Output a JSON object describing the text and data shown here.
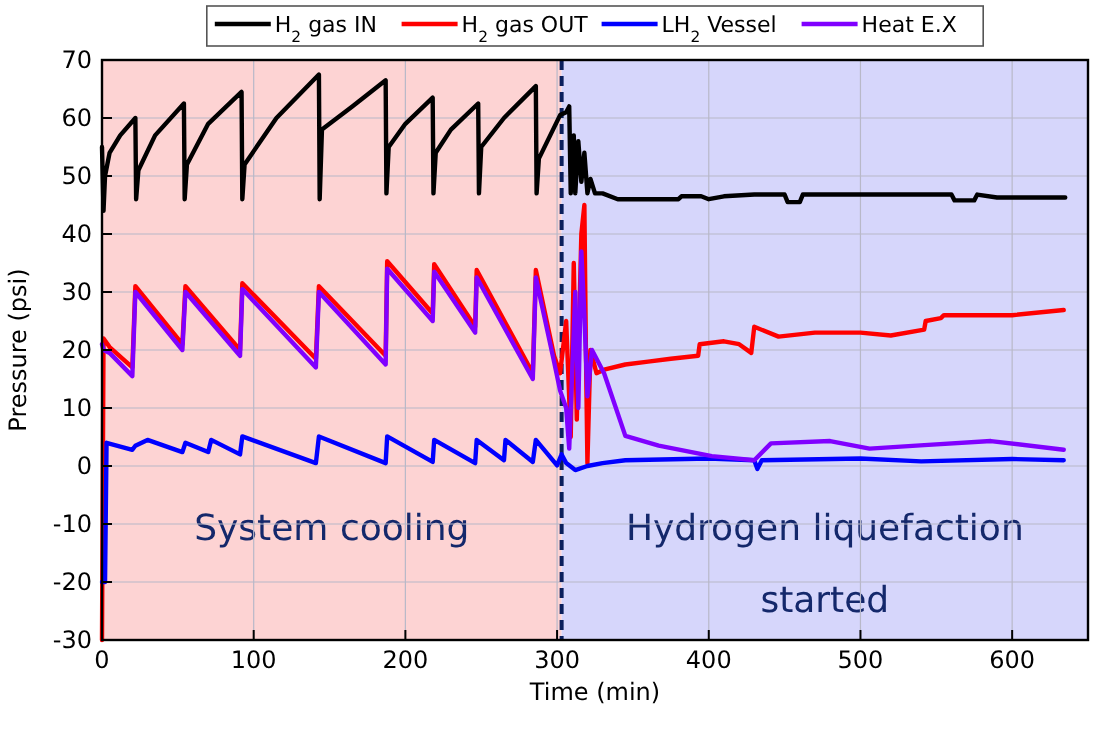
{
  "chart_data": {
    "type": "line",
    "xlabel": "Time (min)",
    "ylabel": "Pressure (psi)",
    "xlim": [
      0,
      650
    ],
    "xticks": [
      0,
      100,
      200,
      300,
      400,
      500,
      600
    ],
    "ylim": [
      -30,
      70
    ],
    "yticks": [
      -30,
      -20,
      -10,
      0,
      10,
      20,
      30,
      40,
      50,
      60,
      70
    ],
    "grid": true,
    "legend": "top",
    "line_style": "solid",
    "marker": "none",
    "bands": [
      {
        "axis": "x",
        "from": 0,
        "to": 303,
        "label": "System cooling",
        "color": "#fdd3d3"
      },
      {
        "axis": "x",
        "from": 303,
        "to": 650,
        "label": "Hydrogen liquefaction started",
        "color": "#d6d6fb"
      }
    ],
    "ref_lines": [
      {
        "axis": "x",
        "value": 303,
        "label": null,
        "color": "#0b1f5c",
        "line_style": "dashed"
      }
    ],
    "series": [
      {
        "name": "H$_{2}$ gas IN",
        "color": "#000000",
        "x": [
          0,
          1,
          2,
          5,
          12,
          22,
          22.5,
          24,
          35,
          54,
          54.5,
          56,
          70,
          92,
          92.5,
          94,
          115,
          143,
          143.5,
          145,
          165,
          187,
          187.5,
          189,
          200,
          218,
          218.5,
          220,
          230,
          248,
          248.5,
          250,
          265,
          286,
          286.5,
          288,
          302,
          306,
          308,
          309,
          311,
          312,
          314,
          316,
          318,
          320,
          322,
          325,
          330,
          340,
          380,
          382,
          395,
          400,
          410,
          430,
          450,
          452,
          460,
          462,
          560,
          562,
          575,
          577,
          590,
          635
        ],
        "values": [
          55,
          44,
          50,
          54,
          57,
          60,
          46,
          51,
          57,
          62.5,
          46,
          52,
          59,
          64.5,
          46,
          52,
          60,
          67.5,
          46,
          58,
          62,
          66.5,
          47,
          55,
          59,
          63.5,
          47,
          54,
          58,
          62.5,
          47,
          55,
          60,
          65.5,
          47,
          53,
          60.5,
          61,
          62,
          47,
          57,
          47,
          56,
          49,
          54,
          47,
          49.5,
          47,
          47,
          46,
          46,
          46.5,
          46.5,
          46,
          46.5,
          46.8,
          46.8,
          45.5,
          45.5,
          46.8,
          46.8,
          45.8,
          45.8,
          46.8,
          46.3,
          46.3
        ]
      },
      {
        "name": "H$_{2}$ gas OUT",
        "color": "#ff0000",
        "x": [
          0,
          1,
          5,
          20,
          22,
          53,
          55,
          91,
          92.5,
          141,
          143,
          187,
          188,
          218,
          219,
          246,
          247,
          284,
          286,
          298,
          302,
          306,
          309,
          311,
          313,
          316,
          318,
          319,
          320,
          322,
          326,
          331,
          345,
          360,
          375,
          393,
          394,
          410,
          420,
          428,
          430,
          446,
          470,
          500,
          520,
          542,
          543,
          553,
          555,
          600,
          634
        ],
        "values": [
          -30,
          22,
          20.5,
          17,
          31,
          21,
          31,
          20,
          31.5,
          18.5,
          31,
          19,
          35.3,
          26.3,
          34.8,
          24,
          33.8,
          16,
          33.8,
          19,
          16,
          25,
          5,
          35,
          8,
          40,
          45,
          20,
          0.5,
          20,
          16,
          16.6,
          17.5,
          18,
          18.5,
          19,
          21,
          21.5,
          21,
          19.5,
          24,
          22.3,
          23,
          23,
          22.5,
          23.5,
          25,
          25.5,
          26,
          26,
          26.9
        ]
      },
      {
        "name": "LH$_{2}$ Vessel",
        "color": "#0000ff",
        "x": [
          0,
          2,
          3,
          20,
          22,
          30,
          53,
          55,
          70,
          72,
          91,
          92.5,
          141,
          143,
          187,
          188,
          218,
          219,
          246,
          247,
          265,
          266,
          284,
          286,
          300,
          303,
          306,
          312,
          320,
          330,
          345,
          400,
          430,
          432,
          435,
          500,
          540,
          600,
          634
        ],
        "values": [
          -20,
          -20,
          4,
          2.8,
          3.5,
          4.5,
          2.4,
          4,
          2.4,
          4.5,
          2,
          5.1,
          0.5,
          5.1,
          0.5,
          5.1,
          0.7,
          4.5,
          0.5,
          4.5,
          1,
          4.5,
          0.7,
          4.5,
          0.1,
          2,
          0.5,
          -0.7,
          0,
          0.5,
          1,
          1.3,
          1,
          -0.5,
          1,
          1.3,
          0.8,
          1.2,
          1
        ]
      },
      {
        "name": "Heat E.X",
        "color": "#8000ff",
        "x": [
          0,
          1,
          5,
          20,
          22,
          53,
          55,
          91,
          92.5,
          141,
          143,
          187,
          188,
          218,
          219,
          246,
          247,
          284,
          286,
          298,
          302,
          306,
          308,
          312,
          314,
          316,
          318,
          320,
          323,
          331,
          345,
          367,
          402,
          430,
          441,
          480,
          506,
          542,
          586,
          634
        ],
        "values": [
          21,
          20,
          19.5,
          15.5,
          30,
          20,
          30,
          19,
          30.5,
          17,
          30,
          17.5,
          34,
          25,
          33.5,
          23,
          32.5,
          15,
          32.5,
          18,
          13,
          10,
          3,
          30,
          10,
          37,
          26,
          12,
          20,
          16,
          5.2,
          3.5,
          1.7,
          1,
          3.9,
          4.3,
          3,
          3.6,
          4.3,
          2.8
        ]
      }
    ]
  }
}
